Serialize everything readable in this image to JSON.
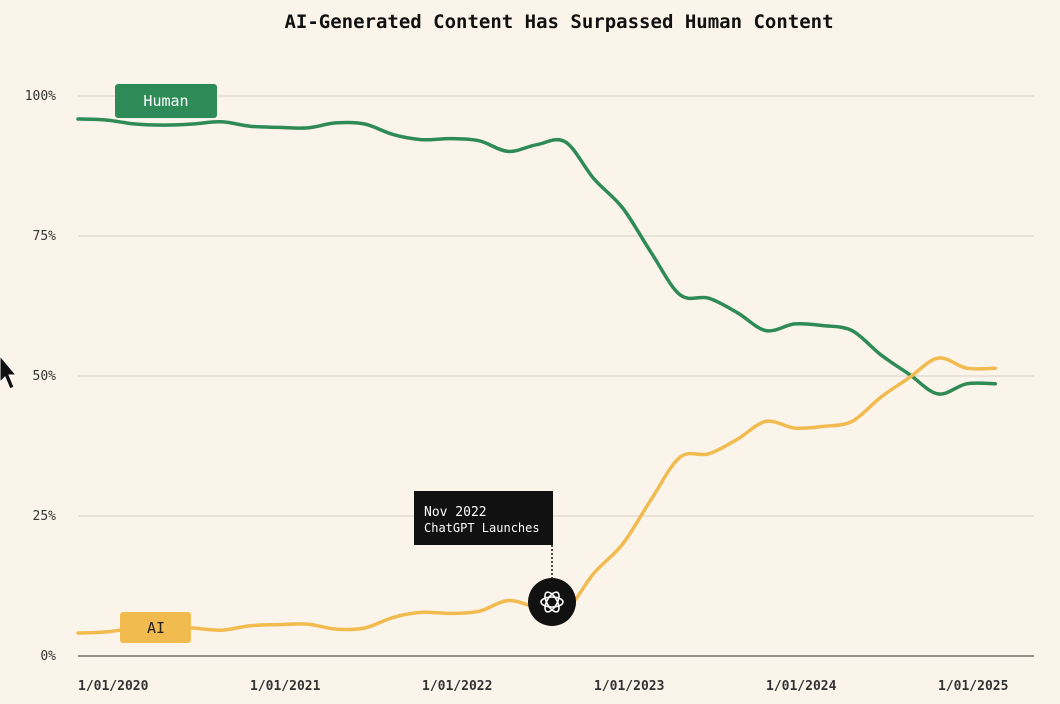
{
  "chart_data": {
    "type": "line",
    "title": "AI-Generated Content Has Surpassed Human Content",
    "xlabel": "",
    "ylabel": "",
    "ylim": [
      0,
      100
    ],
    "y_ticks": [
      "0%",
      "25%",
      "50%",
      "75%",
      "100%"
    ],
    "x_ticks": [
      "1/01/2020",
      "1/01/2021",
      "1/01/2022",
      "1/01/2023",
      "1/01/2024",
      "1/01/2025"
    ],
    "grid": true,
    "x": [
      "2020-01",
      "2020-03",
      "2020-05",
      "2020-07",
      "2020-09",
      "2020-11",
      "2021-01",
      "2021-03",
      "2021-05",
      "2021-07",
      "2021-09",
      "2021-11",
      "2022-01",
      "2022-03",
      "2022-05",
      "2022-07",
      "2022-09",
      "2022-11",
      "2023-01",
      "2023-03",
      "2023-05",
      "2023-07",
      "2023-09",
      "2023-11",
      "2024-01",
      "2024-03",
      "2024-05",
      "2024-07",
      "2024-09",
      "2024-11",
      "2025-01",
      "2025-03",
      "2025-05"
    ],
    "series": [
      {
        "name": "Human",
        "color": "#2e8b57",
        "values": [
          95.9,
          95.7,
          95.0,
          94.8,
          95.0,
          95.4,
          94.6,
          94.4,
          94.3,
          95.2,
          95.0,
          93.1,
          92.2,
          92.4,
          92.0,
          90.1,
          91.3,
          91.8,
          85.2,
          80.0,
          72.0,
          64.5,
          63.9,
          61.3,
          58.1,
          59.3,
          59.0,
          58.1,
          53.8,
          50.3,
          46.8,
          48.6,
          48.6
        ]
      },
      {
        "name": "AI",
        "color": "#f2bb4f",
        "values": [
          4.1,
          4.3,
          5.0,
          5.2,
          5.0,
          4.6,
          5.4,
          5.6,
          5.7,
          4.8,
          5.0,
          6.9,
          7.8,
          7.6,
          8.0,
          9.9,
          8.7,
          8.2,
          14.8,
          20.0,
          28.0,
          35.5,
          36.1,
          38.7,
          41.9,
          40.7,
          41.0,
          41.9,
          46.2,
          49.7,
          53.2,
          51.4,
          51.4
        ]
      }
    ],
    "annotation": {
      "x": "2022-11",
      "lines": [
        "Nov 2022",
        "ChatGPT Launches"
      ],
      "icon": "openai-logo-icon"
    }
  }
}
